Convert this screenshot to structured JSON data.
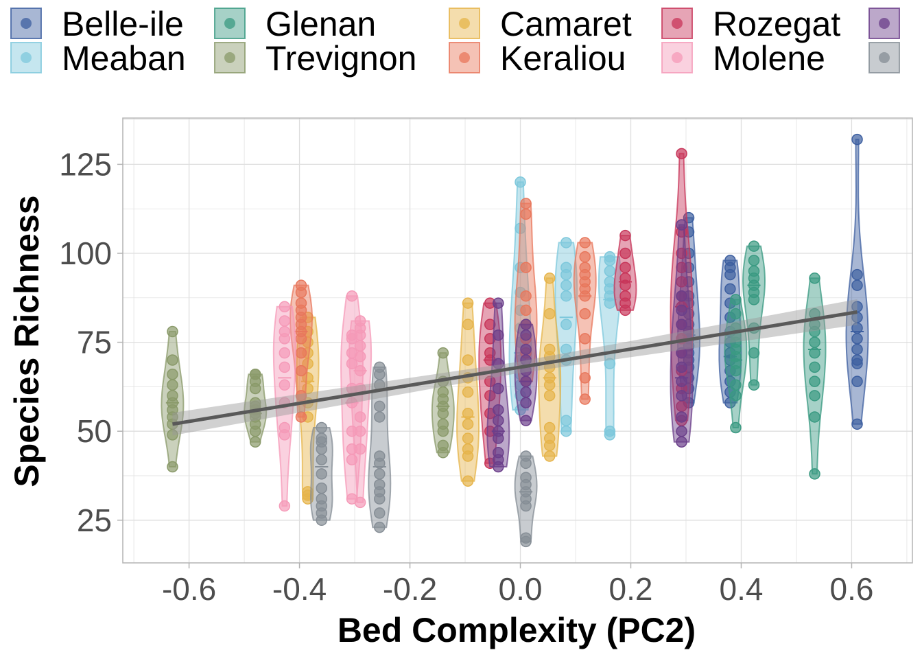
{
  "chart_data": {
    "type": "scatter",
    "xlabel": "Bed Complexity (PC2)",
    "ylabel": "Species Richness",
    "xlim": [
      -0.72,
      0.71
    ],
    "ylim": [
      13,
      138
    ],
    "x_ticks": [
      -0.6,
      -0.4,
      -0.2,
      0.0,
      0.2,
      0.4,
      0.6
    ],
    "x_tick_labels": [
      "-0.6",
      "-0.4",
      "-0.2",
      "0.0",
      "0.2",
      "0.4",
      "0.6"
    ],
    "y_ticks": [
      25,
      50,
      75,
      100,
      125
    ],
    "y_tick_labels": [
      "25",
      "50",
      "75",
      "100",
      "125"
    ],
    "grid": true,
    "legend_position": "top",
    "trend_line": {
      "x": [
        -0.63,
        0.61
      ],
      "y": [
        52,
        83.5
      ],
      "ci_halfwidth": [
        3.2,
        3.6
      ],
      "color": "#595959"
    },
    "series": [
      {
        "name": "Belle-ile",
        "color": "#3d5fa0",
        "groups": [
          {
            "x": 0.305,
            "median": 77,
            "values": [
              58,
              62,
              65,
              68,
              70,
              72,
              74,
              76,
              78,
              80,
              83,
              86,
              88,
              92,
              96,
              100,
              106,
              110
            ]
          },
          {
            "x": 0.38,
            "median": 71,
            "values": [
              58,
              61,
              64,
              67,
              70,
              72,
              75,
              78,
              82,
              86,
              90,
              94,
              96,
              98
            ]
          },
          {
            "x": 0.61,
            "median": 78,
            "values": [
              52,
              64,
              69,
              70,
              73,
              76,
              79,
              82,
              85,
              91,
              94,
              132
            ]
          }
        ]
      },
      {
        "name": "Meaban",
        "color": "#7ec8dc",
        "groups": [
          {
            "x": 0.0,
            "median": 72,
            "values": [
              56,
              60,
              63,
              66,
              70,
              75,
              79,
              84,
              89,
              96,
              107,
              120
            ]
          },
          {
            "x": 0.083,
            "median": 82,
            "values": [
              50,
              53,
              70,
              73,
              80,
              88,
              91,
              94,
              96,
              103
            ]
          },
          {
            "x": 0.162,
            "median": 87,
            "values": [
              49,
              50,
              69,
              86,
              88,
              90,
              92,
              95,
              98,
              99
            ]
          }
        ]
      },
      {
        "name": "Glenan",
        "color": "#3a9a82",
        "groups": [
          {
            "x": 0.39,
            "median": 70,
            "values": [
              51,
              60,
              63,
              67,
              69,
              71,
              73,
              75,
              77,
              79,
              83,
              87
            ]
          },
          {
            "x": 0.423,
            "median": 91,
            "values": [
              63,
              72,
              79,
              87,
              89,
              91,
              93,
              95,
              98,
              102
            ]
          },
          {
            "x": 0.533,
            "median": 73,
            "values": [
              38,
              54,
              60,
              64,
              68,
              72,
              75,
              78,
              80,
              83,
              93
            ]
          }
        ]
      },
      {
        "name": "Trevignon",
        "color": "#8a9a6a",
        "groups": [
          {
            "x": -0.63,
            "median": 58,
            "values": [
              40,
              49,
              52,
              54,
              56,
              58,
              60,
              63,
              66,
              70,
              78
            ]
          },
          {
            "x": -0.48,
            "median": 55,
            "values": [
              47,
              50,
              52,
              54,
              55,
              56,
              57,
              58,
              62,
              64,
              66,
              66
            ]
          },
          {
            "x": -0.14,
            "median": 57,
            "values": [
              44,
              46,
              50,
              52,
              55,
              57,
              59,
              61,
              64,
              72
            ]
          }
        ]
      },
      {
        "name": "Camaret",
        "color": "#e6b44a",
        "groups": [
          {
            "x": -0.385,
            "median": 64,
            "values": [
              31,
              32,
              33,
              54,
              58,
              62,
              65,
              69,
              72,
              75,
              78,
              82
            ]
          },
          {
            "x": -0.095,
            "median": 54,
            "values": [
              36,
              43,
              45,
              48,
              52,
              55,
              61,
              65,
              70,
              80,
              86
            ]
          },
          {
            "x": 0.053,
            "median": 65,
            "values": [
              43,
              46,
              48,
              51,
              60,
              63,
              65,
              68,
              71,
              73,
              83,
              93
            ]
          }
        ]
      },
      {
        "name": "Keraliou",
        "color": "#e8775c",
        "groups": [
          {
            "x": -0.397,
            "median": 78,
            "values": [
              54,
              60,
              67,
              72,
              76,
              78,
              80,
              82,
              84,
              86,
              89,
              91
            ]
          },
          {
            "x": 0.01,
            "median": 80,
            "values": [
              64,
              72,
              76,
              80,
              84,
              88,
              96,
              111,
              114
            ]
          },
          {
            "x": 0.117,
            "median": 88,
            "values": [
              59,
              65,
              76,
              83,
              88,
              90,
              92,
              94,
              96,
              99,
              103
            ]
          }
        ]
      },
      {
        "name": "Rozegat",
        "color": "#c8365a",
        "groups": [
          {
            "x": -0.055,
            "median": 70,
            "values": [
              41,
              50,
              55,
              60,
              64,
              70,
              72,
              76,
              80,
              86
            ]
          },
          {
            "x": 0.292,
            "median": 85,
            "values": [
              53,
              57,
              62,
              67,
              72,
              76,
              80,
              85,
              88,
              92,
              96,
              100,
              106,
              128
            ]
          },
          {
            "x": 0.19,
            "median": 92,
            "values": [
              84,
              86,
              88,
              91,
              93,
              96,
              100,
              105
            ]
          }
        ]
      },
      {
        "name": "Molene",
        "color": "#f59ab8",
        "groups": [
          {
            "x": -0.427,
            "median": 65,
            "values": [
              29,
              49,
              51,
              58,
              63,
              68,
              72,
              76,
              78,
              81,
              85
            ]
          },
          {
            "x": -0.305,
            "median": 58,
            "values": [
              31,
              42,
              45,
              50,
              58,
              62,
              69,
              72,
              76,
              77,
              88
            ]
          },
          {
            "x": -0.29,
            "median": 67,
            "values": [
              30,
              45,
              50,
              54,
              62,
              67,
              71,
              74,
              77,
              79,
              81
            ]
          }
        ]
      },
      {
        "name": "",
        "color": "#6b3f8a",
        "groups": [
          {
            "x": -0.04,
            "median": 50,
            "values": [
              40,
              42,
              44,
              48,
              50,
              53,
              56,
              62,
              69,
              77,
              86
            ]
          },
          {
            "x": 0.01,
            "median": 64,
            "values": [
              53,
              58,
              61,
              64,
              67,
              70,
              73,
              77,
              80
            ]
          },
          {
            "x": 0.292,
            "median": 65,
            "values": [
              47,
              50,
              54,
              60,
              64,
              68,
              72,
              80,
              84,
              88,
              108
            ]
          }
        ]
      },
      {
        "name": "",
        "color": "#868e96",
        "groups": [
          {
            "x": -0.36,
            "median": 40,
            "values": [
              25,
              27,
              29,
              31,
              34,
              38,
              42,
              45,
              47,
              48,
              51
            ]
          },
          {
            "x": -0.255,
            "median": 40,
            "values": [
              23,
              27,
              31,
              33,
              35,
              38,
              41,
              43,
              54,
              57,
              63,
              66,
              68
            ]
          },
          {
            "x": 0.01,
            "median": 33,
            "values": [
              19,
              20,
              29,
              31,
              33,
              35,
              37,
              41,
              43
            ]
          }
        ]
      }
    ]
  }
}
